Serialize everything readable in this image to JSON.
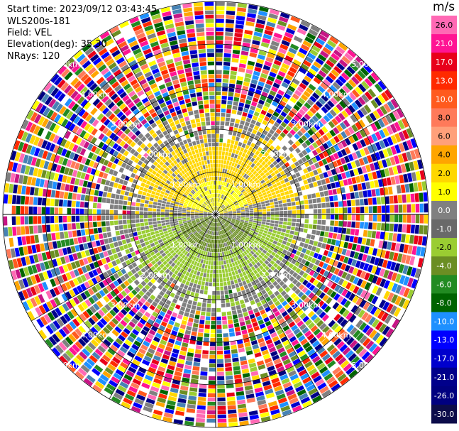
{
  "header": {
    "start_time_label": "Start time:",
    "start_time": "2023/09/12 03:43:45",
    "instrument": "WLS200s-181",
    "field_label": "Field:",
    "field": "VEL",
    "elevation_label": "Elevation(deg):",
    "elevation": "35.30",
    "nrays_label": "NRays:",
    "nrays": "120"
  },
  "chart_data": {
    "type": "heatmap",
    "projection": "polar-ppi",
    "field": "VEL",
    "nrays": 120,
    "range_ring_labels": [
      "1.00km",
      "2.00km",
      "3.00km",
      "4.00km",
      "5.00km"
    ],
    "range_rings_km": [
      1,
      2,
      3,
      4,
      5
    ],
    "azimuth_spokes_deg": [
      0,
      30,
      60,
      90,
      120,
      150,
      180,
      210,
      240,
      270,
      300,
      330
    ],
    "colorbar": {
      "unit": "m/s",
      "ticks": [
        "26.0",
        "21.0",
        "17.0",
        "13.0",
        "10.0",
        "8.0",
        "6.0",
        "4.0",
        "2.0",
        "1.0",
        "0.0",
        "-1.0",
        "-2.0",
        "-4.0",
        "-6.0",
        "-8.0",
        "-10.0",
        "-13.0",
        "-17.0",
        "-21.0",
        "-26.0",
        "-30.0"
      ],
      "colors": [
        "#ff69b4",
        "#ff1493",
        "#e8001a",
        "#ff2a00",
        "#ff5a1e",
        "#ff7a5a",
        "#ffa07a",
        "#ffa500",
        "#ffd700",
        "#ffff00",
        "#808080",
        "#696969",
        "#9acd32",
        "#6b8e23",
        "#228b22",
        "#006400",
        "#1e90ff",
        "#0000ff",
        "#0000cd",
        "#00008b",
        "#000080",
        "#0c0c4a"
      ]
    },
    "inner_pattern": {
      "positive_sector": "north (towards radar, yellow 1–2 m/s)",
      "negative_sector": "south (away, green -1 to -2 m/s)",
      "outer_noise": "random colours beyond ~2.5 km"
    }
  }
}
